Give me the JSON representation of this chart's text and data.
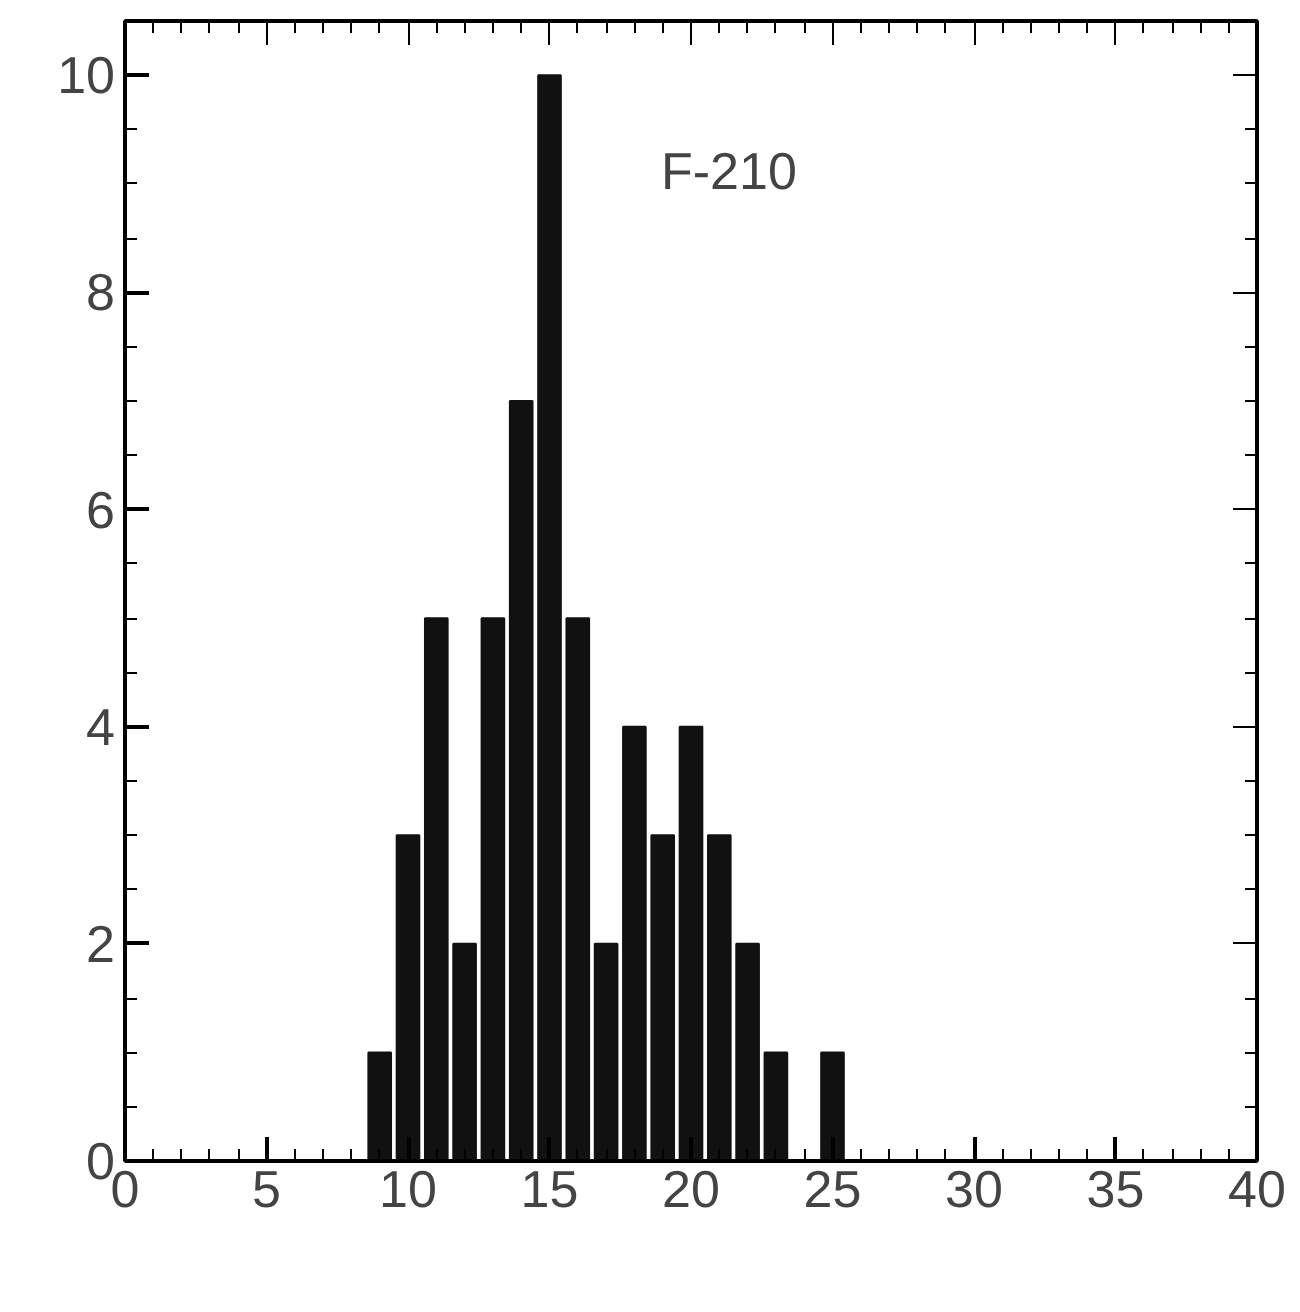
{
  "chart_data": {
    "type": "histogram",
    "annotations": [
      "F-210"
    ],
    "bins": [
      8.5,
      9.5,
      10.5,
      11.5,
      12.5,
      13.5,
      14.5,
      15.5,
      16.5,
      17.5,
      18.5,
      19.5,
      20.5,
      21.5,
      22.5,
      23.5,
      24.5,
      25.5
    ],
    "values": [
      1,
      3,
      5,
      2,
      5,
      7,
      10,
      5,
      2,
      4,
      3,
      4,
      3,
      2,
      1,
      0,
      1
    ],
    "color": "#111111",
    "xlim": [
      0,
      40
    ],
    "ylim": [
      0,
      10.5
    ],
    "xticks": [
      0,
      5,
      10,
      15,
      20,
      25,
      30,
      35,
      40
    ],
    "yticks": [
      0,
      2,
      4,
      6,
      8,
      10
    ],
    "grid": false
  }
}
